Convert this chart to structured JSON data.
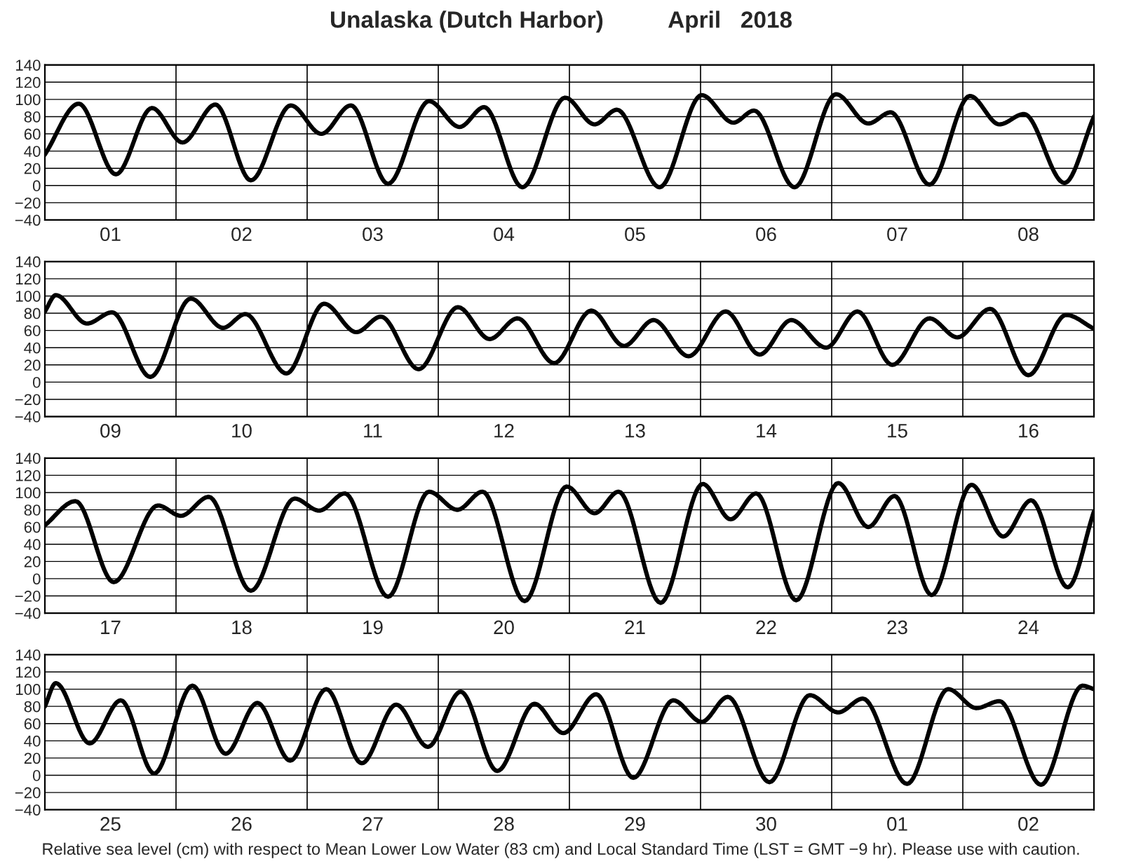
{
  "chart_data": [
    {
      "type": "line",
      "title": "Unalaska (Dutch Harbor)          April   2018",
      "xlim": [
        "2018-04-01T00:00",
        "2018-04-09T00:00"
      ],
      "xticks": [
        {
          "value": "2018-04-01T12:00",
          "label": "01"
        },
        {
          "value": "2018-04-02T12:00",
          "label": "02"
        },
        {
          "value": "2018-04-03T12:00",
          "label": "03"
        },
        {
          "value": "2018-04-04T12:00",
          "label": "04"
        },
        {
          "value": "2018-04-05T12:00",
          "label": "05"
        },
        {
          "value": "2018-04-06T12:00",
          "label": "06"
        },
        {
          "value": "2018-04-07T12:00",
          "label": "07"
        },
        {
          "value": "2018-04-08T12:00",
          "label": "08"
        }
      ],
      "ylim": [
        -40,
        140
      ],
      "yticks": [
        -40,
        -20,
        0,
        20,
        40,
        60,
        80,
        100,
        120,
        140
      ],
      "grid": "y",
      "ref_lines": [
        {
          "axis": "x",
          "value": "2018-04-02T00:00"
        },
        {
          "axis": "x",
          "value": "2018-04-03T00:00"
        },
        {
          "axis": "x",
          "value": "2018-04-04T00:00"
        },
        {
          "axis": "x",
          "value": "2018-04-05T00:00"
        },
        {
          "axis": "x",
          "value": "2018-04-06T00:00"
        },
        {
          "axis": "x",
          "value": "2018-04-07T00:00"
        },
        {
          "axis": "x",
          "value": "2018-04-08T00:00"
        }
      ],
      "series": [
        {
          "color": "#000000",
          "x": [
            "2018-04-01T00:00",
            "2018-04-01T06:12",
            "2018-04-01T13:00",
            "2018-04-01T19:36",
            "2018-04-02T01:12",
            "2018-04-02T07:12",
            "2018-04-02T13:42",
            "2018-04-02T21:00",
            "2018-04-03T02:36",
            "2018-04-03T08:00",
            "2018-04-03T14:48",
            "2018-04-03T22:18",
            "2018-04-04T03:54",
            "2018-04-04T08:24",
            "2018-04-04T15:24",
            "2018-04-04T23:12",
            "2018-04-05T04:36",
            "2018-04-05T08:42",
            "2018-04-05T16:30",
            "2018-04-06T00:12",
            "2018-04-06T06:00",
            "2018-04-06T09:48",
            "2018-04-06T17:12",
            "2018-04-07T00:48",
            "2018-04-07T06:42",
            "2018-04-07T10:48",
            "2018-04-07T17:54",
            "2018-04-08T01:18",
            "2018-04-08T06:42",
            "2018-04-08T11:12",
            "2018-04-08T18:36",
            "2018-04-09T00:00"
          ],
          "values": [
            36,
            95,
            13,
            90,
            50,
            94,
            6,
            93,
            60,
            93,
            2,
            98,
            68,
            91,
            -2,
            102,
            71,
            88,
            -2,
            105,
            73,
            87,
            -2,
            106,
            72,
            85,
            1,
            104,
            71,
            83,
            3,
            80
          ]
        }
      ]
    },
    {
      "type": "line",
      "xlim": [
        "2018-04-09T00:00",
        "2018-04-17T00:00"
      ],
      "xticks": [
        {
          "value": "2018-04-09T12:00",
          "label": "09"
        },
        {
          "value": "2018-04-10T12:00",
          "label": "10"
        },
        {
          "value": "2018-04-11T12:00",
          "label": "11"
        },
        {
          "value": "2018-04-12T12:00",
          "label": "12"
        },
        {
          "value": "2018-04-13T12:00",
          "label": "13"
        },
        {
          "value": "2018-04-14T12:00",
          "label": "14"
        },
        {
          "value": "2018-04-15T12:00",
          "label": "15"
        },
        {
          "value": "2018-04-16T12:00",
          "label": "16"
        }
      ],
      "ylim": [
        -40,
        140
      ],
      "yticks": [
        -40,
        -20,
        0,
        20,
        40,
        60,
        80,
        100,
        120,
        140
      ],
      "grid": "y",
      "ref_lines": [
        {
          "axis": "x",
          "value": "2018-04-10T00:00"
        },
        {
          "axis": "x",
          "value": "2018-04-11T00:00"
        },
        {
          "axis": "x",
          "value": "2018-04-12T00:00"
        },
        {
          "axis": "x",
          "value": "2018-04-13T00:00"
        },
        {
          "axis": "x",
          "value": "2018-04-14T00:00"
        },
        {
          "axis": "x",
          "value": "2018-04-15T00:00"
        },
        {
          "axis": "x",
          "value": "2018-04-16T00:00"
        }
      ],
      "series": [
        {
          "color": "#000000",
          "x": [
            "2018-04-09T00:00",
            "2018-04-09T02:00",
            "2018-04-09T07:42",
            "2018-04-09T12:18",
            "2018-04-09T19:18",
            "2018-04-10T02:42",
            "2018-04-10T08:36",
            "2018-04-10T12:42",
            "2018-04-10T20:12",
            "2018-04-11T03:06",
            "2018-04-11T09:00",
            "2018-04-11T13:30",
            "2018-04-11T20:24",
            "2018-04-12T03:36",
            "2018-04-12T09:24",
            "2018-04-12T14:30",
            "2018-04-12T21:12",
            "2018-04-13T04:00",
            "2018-04-13T10:00",
            "2018-04-13T15:24",
            "2018-04-13T21:48",
            "2018-04-14T04:36",
            "2018-04-14T10:48",
            "2018-04-14T16:36",
            "2018-04-14T23:00",
            "2018-04-15T04:42",
            "2018-04-15T11:06",
            "2018-04-15T17:54",
            "2018-04-15T23:00",
            "2018-04-16T05:00",
            "2018-04-16T12:00",
            "2018-04-16T18:54",
            "2018-04-17T00:00"
          ],
          "values": [
            82,
            101,
            68,
            81,
            6,
            97,
            63,
            79,
            10,
            91,
            58,
            76,
            15,
            87,
            50,
            74,
            22,
            83,
            42,
            72,
            30,
            82,
            32,
            72,
            40,
            82,
            20,
            74,
            52,
            85,
            8,
            78,
            62
          ]
        }
      ]
    },
    {
      "type": "line",
      "xlim": [
        "2018-04-17T00:00",
        "2018-04-25T00:00"
      ],
      "xticks": [
        {
          "value": "2018-04-17T12:00",
          "label": "17"
        },
        {
          "value": "2018-04-18T12:00",
          "label": "18"
        },
        {
          "value": "2018-04-19T12:00",
          "label": "19"
        },
        {
          "value": "2018-04-20T12:00",
          "label": "20"
        },
        {
          "value": "2018-04-21T12:00",
          "label": "21"
        },
        {
          "value": "2018-04-22T12:00",
          "label": "22"
        },
        {
          "value": "2018-04-23T12:00",
          "label": "23"
        },
        {
          "value": "2018-04-24T12:00",
          "label": "24"
        }
      ],
      "ylim": [
        -40,
        140
      ],
      "yticks": [
        -40,
        -20,
        0,
        20,
        40,
        60,
        80,
        100,
        120,
        140
      ],
      "grid": "y",
      "ref_lines": [
        {
          "axis": "x",
          "value": "2018-04-18T00:00"
        },
        {
          "axis": "x",
          "value": "2018-04-19T00:00"
        },
        {
          "axis": "x",
          "value": "2018-04-20T00:00"
        },
        {
          "axis": "x",
          "value": "2018-04-21T00:00"
        },
        {
          "axis": "x",
          "value": "2018-04-22T00:00"
        },
        {
          "axis": "x",
          "value": "2018-04-23T00:00"
        },
        {
          "axis": "x",
          "value": "2018-04-24T00:00"
        }
      ],
      "series": [
        {
          "color": "#000000",
          "x": [
            "2018-04-17T00:00",
            "2018-04-17T05:36",
            "2018-04-17T12:36",
            "2018-04-17T20:42",
            "2018-04-18T00:54",
            "2018-04-18T06:00",
            "2018-04-18T13:42",
            "2018-04-18T21:42",
            "2018-04-19T02:12",
            "2018-04-19T06:54",
            "2018-04-19T14:48",
            "2018-04-19T22:18",
            "2018-04-20T03:30",
            "2018-04-20T08:06",
            "2018-04-20T15:48",
            "2018-04-20T23:30",
            "2018-04-21T04:36",
            "2018-04-21T09:00",
            "2018-04-21T16:42",
            "2018-04-22T00:24",
            "2018-04-22T05:30",
            "2018-04-22T10:12",
            "2018-04-22T17:30",
            "2018-04-23T01:12",
            "2018-04-23T06:42",
            "2018-04-23T11:30",
            "2018-04-23T18:18",
            "2018-04-24T01:36",
            "2018-04-24T07:24",
            "2018-04-24T12:30",
            "2018-04-24T19:12",
            "2018-04-25T00:00"
          ],
          "values": [
            62,
            90,
            -4,
            85,
            73,
            95,
            -14,
            93,
            79,
            99,
            -21,
            101,
            80,
            101,
            -26,
            107,
            76,
            101,
            -28,
            110,
            69,
            99,
            -25,
            111,
            60,
            96,
            -19,
            109,
            49,
            91,
            -10,
            78
          ]
        }
      ]
    },
    {
      "type": "line",
      "xlim": [
        "2018-04-25T00:00",
        "2018-05-03T00:00"
      ],
      "xticks": [
        {
          "value": "2018-04-25T12:00",
          "label": "25"
        },
        {
          "value": "2018-04-26T12:00",
          "label": "26"
        },
        {
          "value": "2018-04-27T12:00",
          "label": "27"
        },
        {
          "value": "2018-04-28T12:00",
          "label": "28"
        },
        {
          "value": "2018-04-29T12:00",
          "label": "29"
        },
        {
          "value": "2018-04-30T12:00",
          "label": "30"
        },
        {
          "value": "2018-05-01T12:00",
          "label": "01"
        },
        {
          "value": "2018-05-02T12:00",
          "label": "02"
        }
      ],
      "ylim": [
        -40,
        140
      ],
      "yticks": [
        -40,
        -20,
        0,
        20,
        40,
        60,
        80,
        100,
        120,
        140
      ],
      "grid": "y",
      "ref_lines": [
        {
          "axis": "x",
          "value": "2018-04-26T00:00"
        },
        {
          "axis": "x",
          "value": "2018-04-27T00:00"
        },
        {
          "axis": "x",
          "value": "2018-04-28T00:00"
        },
        {
          "axis": "x",
          "value": "2018-04-29T00:00"
        },
        {
          "axis": "x",
          "value": "2018-04-30T00:00"
        },
        {
          "axis": "x",
          "value": "2018-05-01T00:00"
        },
        {
          "axis": "x",
          "value": "2018-05-02T00:00"
        }
      ],
      "annotations": [
        "Relative sea level (cm) with respect to Mean Lower Low Water (83 cm) and Local Standard Time (LST = GMT −9 hr). Please use with caution."
      ],
      "series": [
        {
          "color": "#000000",
          "x": [
            "2018-04-25T00:00",
            "2018-04-25T02:00",
            "2018-04-25T08:12",
            "2018-04-25T13:54",
            "2018-04-25T20:00",
            "2018-04-26T03:00",
            "2018-04-26T09:06",
            "2018-04-26T14:54",
            "2018-04-26T20:54",
            "2018-04-27T03:30",
            "2018-04-27T10:00",
            "2018-04-27T16:18",
            "2018-04-27T22:06",
            "2018-04-28T04:06",
            "2018-04-28T10:48",
            "2018-04-28T17:36",
            "2018-04-28T22:54",
            "2018-04-29T04:54",
            "2018-04-29T11:42",
            "2018-04-29T19:00",
            "2018-04-30T00:12",
            "2018-04-30T05:00",
            "2018-04-30T12:36",
            "2018-04-30T20:00",
            "2018-05-01T01:12",
            "2018-05-01T05:42",
            "2018-05-01T13:48",
            "2018-05-01T21:18",
            "2018-05-02T02:30",
            "2018-05-02T06:42",
            "2018-05-02T14:18",
            "2018-05-02T21:54",
            "2018-05-03T00:00"
          ],
          "values": [
            80,
            107,
            37,
            87,
            2,
            104,
            25,
            84,
            17,
            100,
            14,
            82,
            33,
            97,
            5,
            83,
            49,
            94,
            -3,
            87,
            62,
            91,
            -8,
            93,
            73,
            89,
            -10,
            100,
            78,
            86,
            -11,
            104,
            100
          ]
        }
      ]
    }
  ]
}
